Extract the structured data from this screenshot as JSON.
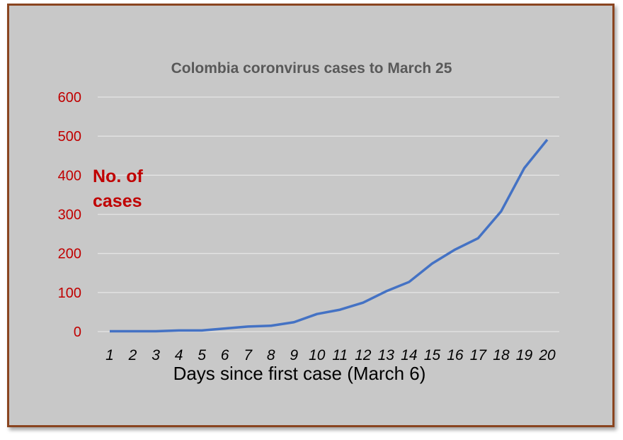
{
  "chart_data": {
    "type": "line",
    "title": "Colombia coronvirus cases to March 25",
    "x_label": "Days since first case (March 6)",
    "y_label": "No. of cases",
    "categories": [
      "1",
      "2",
      "3",
      "4",
      "5",
      "6",
      "7",
      "8",
      "9",
      "10",
      "11",
      "12",
      "13",
      "14",
      "15",
      "16",
      "17",
      "18",
      "19",
      "20"
    ],
    "series": [
      {
        "name": "Cases",
        "color": "#4472c4",
        "values": [
          1,
          1,
          1,
          3,
          3,
          8,
          13,
          15,
          24,
          45,
          56,
          74,
          103,
          127,
          174,
          210,
          239,
          308,
          418,
          491
        ]
      }
    ],
    "ylim": [
      0,
      600
    ],
    "yticks": [
      0,
      100,
      200,
      300,
      400,
      500,
      600
    ],
    "grid": true
  }
}
